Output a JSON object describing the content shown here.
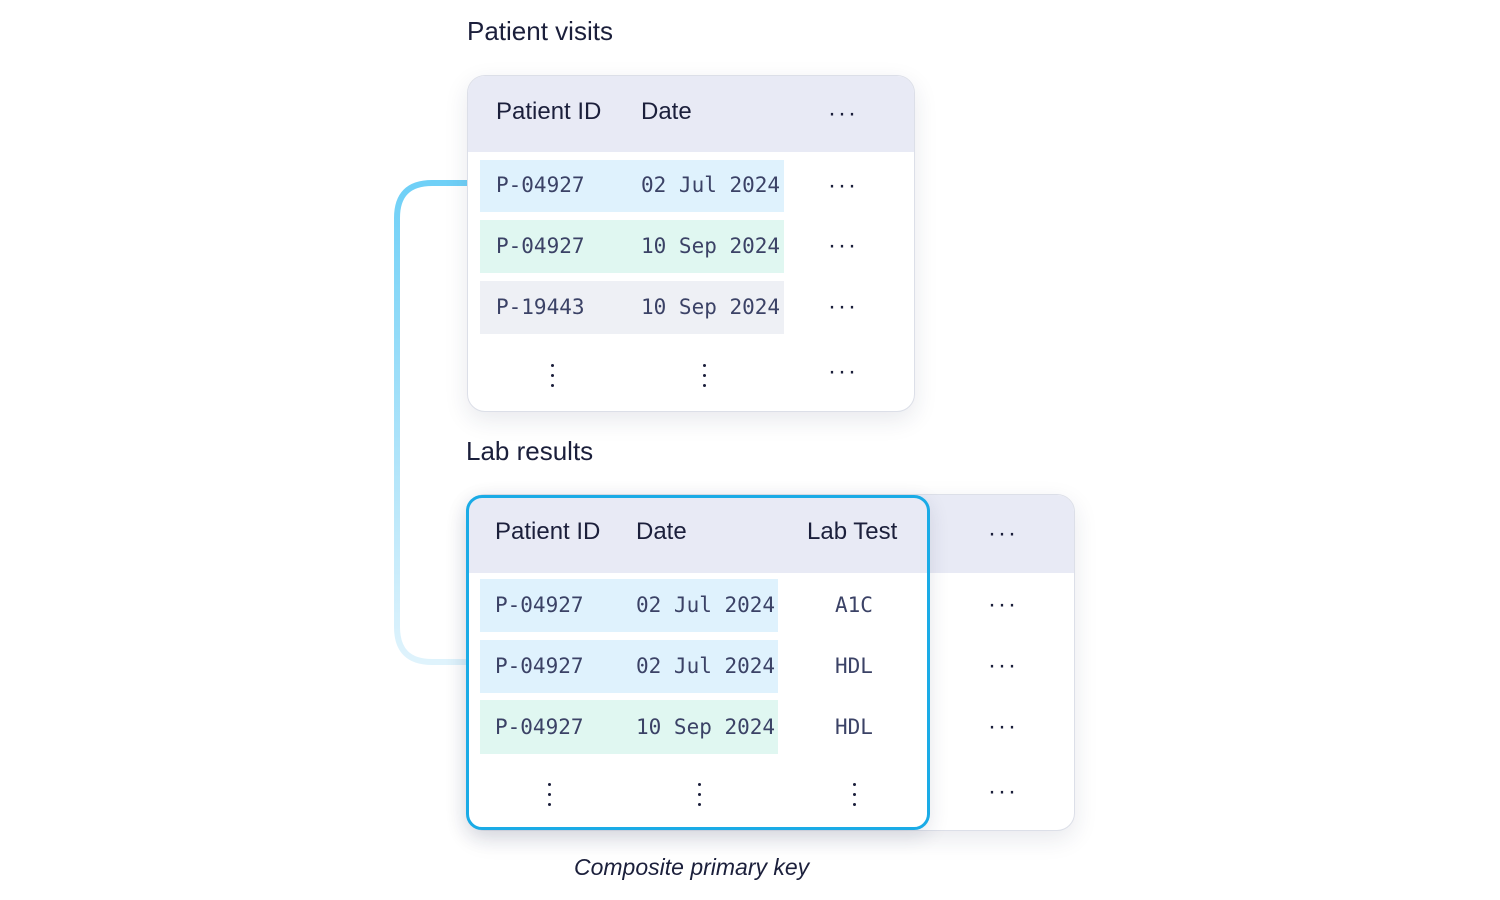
{
  "visits": {
    "title": "Patient visits",
    "headers": [
      "Patient ID",
      "Date",
      "···"
    ],
    "rows": [
      {
        "id": "P-04927",
        "date": "02 Jul 2024",
        "more": "···"
      },
      {
        "id": "P-04927",
        "date": "10 Sep 2024",
        "more": "···"
      },
      {
        "id": "P-19443",
        "date": "10 Sep 2024",
        "more": "···"
      }
    ],
    "footer_more": "···"
  },
  "labs": {
    "title": "Lab results",
    "headers": [
      "Patient ID",
      "Date",
      "Lab Test",
      "···"
    ],
    "rows": [
      {
        "id": "P-04927",
        "date": "02 Jul 2024",
        "test": "A1C",
        "more": "···"
      },
      {
        "id": "P-04927",
        "date": "02 Jul 2024",
        "test": "HDL",
        "more": "···"
      },
      {
        "id": "P-04927",
        "date": "10 Sep 2024",
        "test": "HDL",
        "more": "···"
      }
    ],
    "footer_more": "···"
  },
  "caption": "Composite primary key",
  "colors": {
    "band_blue": "#dff2fd",
    "band_green": "#e0f7f1",
    "band_grey": "#eef0f5",
    "header_bg": "#e8eaf5",
    "accent": "#1aabe6"
  }
}
